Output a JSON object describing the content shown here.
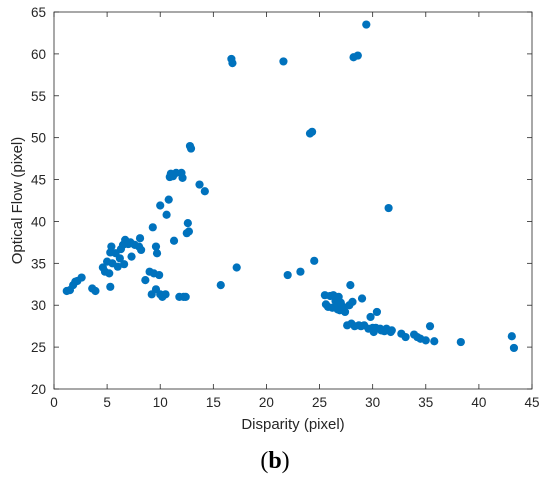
{
  "caption": {
    "open": "(",
    "letter": "b",
    "close": ")"
  },
  "chart_data": {
    "type": "scatter",
    "xlabel": "Disparity (pixel)",
    "ylabel": "Optical Flow (pixel)",
    "xlim": [
      0,
      45
    ],
    "ylim": [
      20,
      65
    ],
    "xticks": [
      0,
      5,
      10,
      15,
      20,
      25,
      30,
      35,
      40,
      45
    ],
    "yticks": [
      20,
      25,
      30,
      35,
      40,
      45,
      50,
      55,
      60,
      65
    ],
    "grid": false,
    "marker_color": "#0072BD",
    "points": [
      [
        1.2,
        31.7
      ],
      [
        1.5,
        31.8
      ],
      [
        1.8,
        32.4
      ],
      [
        2.0,
        32.8
      ],
      [
        2.2,
        32.9
      ],
      [
        2.6,
        33.3
      ],
      [
        3.6,
        32.0
      ],
      [
        3.9,
        31.7
      ],
      [
        4.6,
        34.5
      ],
      [
        4.8,
        34.0
      ],
      [
        5.0,
        35.2
      ],
      [
        5.2,
        33.8
      ],
      [
        5.3,
        32.2
      ],
      [
        5.3,
        36.3
      ],
      [
        5.4,
        37.0
      ],
      [
        5.5,
        35.0
      ],
      [
        5.8,
        36.2
      ],
      [
        6.0,
        34.6
      ],
      [
        6.2,
        35.6
      ],
      [
        6.3,
        36.7
      ],
      [
        6.5,
        37.2
      ],
      [
        6.6,
        34.9
      ],
      [
        6.7,
        37.8
      ],
      [
        7.0,
        37.3
      ],
      [
        7.2,
        37.5
      ],
      [
        7.3,
        35.8
      ],
      [
        7.6,
        37.2
      ],
      [
        8.0,
        37.0
      ],
      [
        8.1,
        38.0
      ],
      [
        8.2,
        36.6
      ],
      [
        8.6,
        33.0
      ],
      [
        9.0,
        34.0
      ],
      [
        9.2,
        31.3
      ],
      [
        9.3,
        39.3
      ],
      [
        9.4,
        33.8
      ],
      [
        9.6,
        31.9
      ],
      [
        9.6,
        37.0
      ],
      [
        9.7,
        36.2
      ],
      [
        9.9,
        33.6
      ],
      [
        10.0,
        31.3
      ],
      [
        10.0,
        41.9
      ],
      [
        10.2,
        31.0
      ],
      [
        10.5,
        31.3
      ],
      [
        10.6,
        40.8
      ],
      [
        10.8,
        42.6
      ],
      [
        10.9,
        45.3
      ],
      [
        11.0,
        45.7
      ],
      [
        11.2,
        45.4
      ],
      [
        11.3,
        37.7
      ],
      [
        11.5,
        45.8
      ],
      [
        11.8,
        31.0
      ],
      [
        12.0,
        45.8
      ],
      [
        12.1,
        45.2
      ],
      [
        12.2,
        31.0
      ],
      [
        12.4,
        31.0
      ],
      [
        12.5,
        38.6
      ],
      [
        12.6,
        39.8
      ],
      [
        12.7,
        38.8
      ],
      [
        12.8,
        49.0
      ],
      [
        12.9,
        48.7
      ],
      [
        13.7,
        44.4
      ],
      [
        14.2,
        43.6
      ],
      [
        15.7,
        32.4
      ],
      [
        16.7,
        59.4
      ],
      [
        16.8,
        58.9
      ],
      [
        17.2,
        34.5
      ],
      [
        21.6,
        59.1
      ],
      [
        22.0,
        33.6
      ],
      [
        23.2,
        34.0
      ],
      [
        24.1,
        50.5
      ],
      [
        24.3,
        50.7
      ],
      [
        24.5,
        35.3
      ],
      [
        25.5,
        31.2
      ],
      [
        25.6,
        30.1
      ],
      [
        25.8,
        29.8
      ],
      [
        26.0,
        31.1
      ],
      [
        26.2,
        29.7
      ],
      [
        26.3,
        31.2
      ],
      [
        26.5,
        30.5
      ],
      [
        26.6,
        30.0
      ],
      [
        26.7,
        29.5
      ],
      [
        26.8,
        31.0
      ],
      [
        26.9,
        29.4
      ],
      [
        27.0,
        30.3
      ],
      [
        27.2,
        29.8
      ],
      [
        27.4,
        29.2
      ],
      [
        27.6,
        27.6
      ],
      [
        27.8,
        30.0
      ],
      [
        27.9,
        32.4
      ],
      [
        28.0,
        27.8
      ],
      [
        28.1,
        30.4
      ],
      [
        28.2,
        59.6
      ],
      [
        28.3,
        27.5
      ],
      [
        28.6,
        59.8
      ],
      [
        28.7,
        27.6
      ],
      [
        28.9,
        27.5
      ],
      [
        29.0,
        30.8
      ],
      [
        29.2,
        27.6
      ],
      [
        29.4,
        63.5
      ],
      [
        29.6,
        27.2
      ],
      [
        29.8,
        28.6
      ],
      [
        30.0,
        27.3
      ],
      [
        30.1,
        26.8
      ],
      [
        30.3,
        27.3
      ],
      [
        30.4,
        29.2
      ],
      [
        30.7,
        27.2
      ],
      [
        30.8,
        27.0
      ],
      [
        31.1,
        26.9
      ],
      [
        31.3,
        27.2
      ],
      [
        31.5,
        41.6
      ],
      [
        31.7,
        26.8
      ],
      [
        31.8,
        27.0
      ],
      [
        32.7,
        26.6
      ],
      [
        33.1,
        26.2
      ],
      [
        33.9,
        26.5
      ],
      [
        34.2,
        26.2
      ],
      [
        34.5,
        26.0
      ],
      [
        35.0,
        25.8
      ],
      [
        35.4,
        27.5
      ],
      [
        35.8,
        25.7
      ],
      [
        38.3,
        25.6
      ],
      [
        43.1,
        26.3
      ],
      [
        43.3,
        24.9
      ]
    ]
  }
}
